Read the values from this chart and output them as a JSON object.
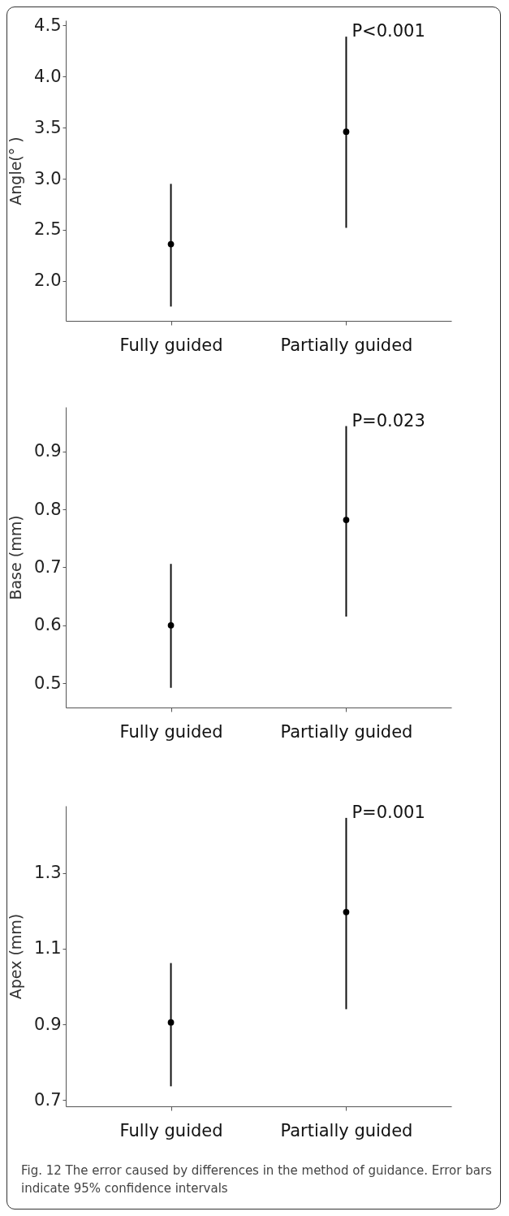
{
  "chart_data": [
    {
      "type": "scatter",
      "ylabel": "Angle(°  )",
      "categories": [
        "Fully guided",
        "Partially guided"
      ],
      "values": [
        2.36,
        3.46
      ],
      "errors": [
        [
          1.75,
          2.95
        ],
        [
          2.52,
          4.39
        ]
      ],
      "ylim": [
        1.61,
        4.55
      ],
      "yticks": [
        {
          "value": 2,
          "label": "2.0"
        },
        2.5,
        {
          "value": 3,
          "label": "3.0"
        },
        3.5,
        {
          "value": 4,
          "label": "4.0"
        },
        4.5
      ],
      "marker": "circle",
      "grid": false,
      "annotations": [
        {
          "text": "P<0.001",
          "x": "Partially guided",
          "y": 4.39
        }
      ]
    },
    {
      "type": "scatter",
      "ylabel": "Base (mm)",
      "categories": [
        "Fully guided",
        "Partially guided"
      ],
      "values": [
        0.6,
        0.782
      ],
      "errors": [
        [
          0.492,
          0.706
        ],
        [
          0.615,
          0.944
        ]
      ],
      "ylim": [
        0.458,
        0.977
      ],
      "yticks": [
        0.5,
        0.6,
        0.7,
        0.8,
        0.9
      ],
      "marker": "circle",
      "grid": false,
      "annotations": [
        {
          "text": "P=0.023",
          "x": "Partially guided",
          "y": 0.944
        }
      ]
    },
    {
      "type": "scatter",
      "ylabel": "Apex (mm)",
      "categories": [
        "Fully guided",
        "Partially guided"
      ],
      "values": [
        0.905,
        1.197
      ],
      "errors": [
        [
          0.736,
          1.062
        ],
        [
          0.94,
          1.446
        ]
      ],
      "ylim": [
        0.683,
        1.478
      ],
      "yticks": [
        0.7,
        0.9,
        1.1,
        1.3
      ],
      "marker": "circle",
      "grid": false,
      "annotations": [
        {
          "text": "P=0.001",
          "x": "Partially guided",
          "y": 1.446
        },
        "Fig. 12 The error caused by differences in the method of guidance. Error bars indicate 95% confidence intervals"
      ]
    }
  ]
}
